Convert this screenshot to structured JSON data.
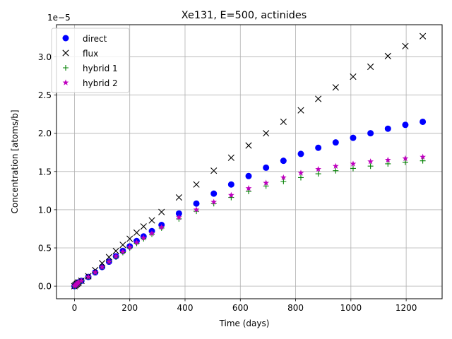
{
  "chart_data": {
    "type": "scatter",
    "title": "Xe131, E=500, actinides",
    "xlabel": "Time (days)",
    "ylabel": "Concentration [atoms/b]",
    "y_offset_label": "1e−5",
    "xlim": [
      -65,
      1330
    ],
    "ylim": [
      -0.165,
      3.42
    ],
    "y_scale_factor": "1e-5",
    "grid": true,
    "legend_position": "upper-left",
    "xticks": [
      0,
      200,
      400,
      600,
      800,
      1000,
      1200
    ],
    "xtick_labels": [
      "0",
      "200",
      "400",
      "600",
      "800",
      "1000",
      "1200"
    ],
    "yticks": [
      0.0,
      0.5,
      1.0,
      1.5,
      2.0,
      2.5,
      3.0
    ],
    "ytick_labels": [
      "0.0",
      "0.5",
      "1.0",
      "1.5",
      "2.0",
      "2.5",
      "3.0"
    ],
    "x": [
      0,
      3,
      6,
      9,
      12,
      15,
      25,
      50,
      75,
      100,
      125,
      150,
      175,
      200,
      225,
      250,
      280,
      315,
      378,
      441,
      504,
      567,
      630,
      693,
      756,
      819,
      882,
      945,
      1008,
      1071,
      1134,
      1197,
      1260
    ],
    "series": [
      {
        "name": "direct",
        "marker": "circle",
        "color": "#0000ff",
        "values": [
          0.0,
          0.01,
          0.02,
          0.03,
          0.04,
          0.05,
          0.07,
          0.12,
          0.18,
          0.25,
          0.32,
          0.39,
          0.46,
          0.52,
          0.59,
          0.65,
          0.72,
          0.8,
          0.95,
          1.08,
          1.21,
          1.33,
          1.44,
          1.55,
          1.64,
          1.73,
          1.81,
          1.88,
          1.94,
          2.0,
          2.06,
          2.11,
          2.15
        ]
      },
      {
        "name": "flux",
        "marker": "x",
        "color": "#000000",
        "values": [
          0.0,
          0.01,
          0.02,
          0.03,
          0.04,
          0.05,
          0.07,
          0.13,
          0.21,
          0.3,
          0.38,
          0.46,
          0.54,
          0.62,
          0.7,
          0.78,
          0.86,
          0.97,
          1.16,
          1.33,
          1.51,
          1.68,
          1.84,
          2.0,
          2.15,
          2.3,
          2.45,
          2.6,
          2.74,
          2.87,
          3.01,
          3.14,
          3.27
        ]
      },
      {
        "name": "hybrid 1",
        "marker": "plus",
        "color": "#008000",
        "values": [
          0.0,
          0.01,
          0.02,
          0.03,
          0.04,
          0.05,
          0.07,
          0.12,
          0.18,
          0.25,
          0.32,
          0.38,
          0.44,
          0.5,
          0.56,
          0.62,
          0.68,
          0.76,
          0.88,
          0.98,
          1.08,
          1.16,
          1.24,
          1.31,
          1.37,
          1.42,
          1.47,
          1.51,
          1.54,
          1.57,
          1.6,
          1.62,
          1.64
        ]
      },
      {
        "name": "hybrid 2",
        "marker": "star",
        "color": "#bf00bf",
        "values": [
          0.0,
          0.01,
          0.02,
          0.03,
          0.04,
          0.05,
          0.07,
          0.12,
          0.18,
          0.25,
          0.32,
          0.39,
          0.45,
          0.51,
          0.57,
          0.63,
          0.69,
          0.77,
          0.9,
          1.0,
          1.1,
          1.19,
          1.28,
          1.35,
          1.42,
          1.48,
          1.53,
          1.57,
          1.6,
          1.63,
          1.65,
          1.67,
          1.69
        ]
      }
    ]
  }
}
